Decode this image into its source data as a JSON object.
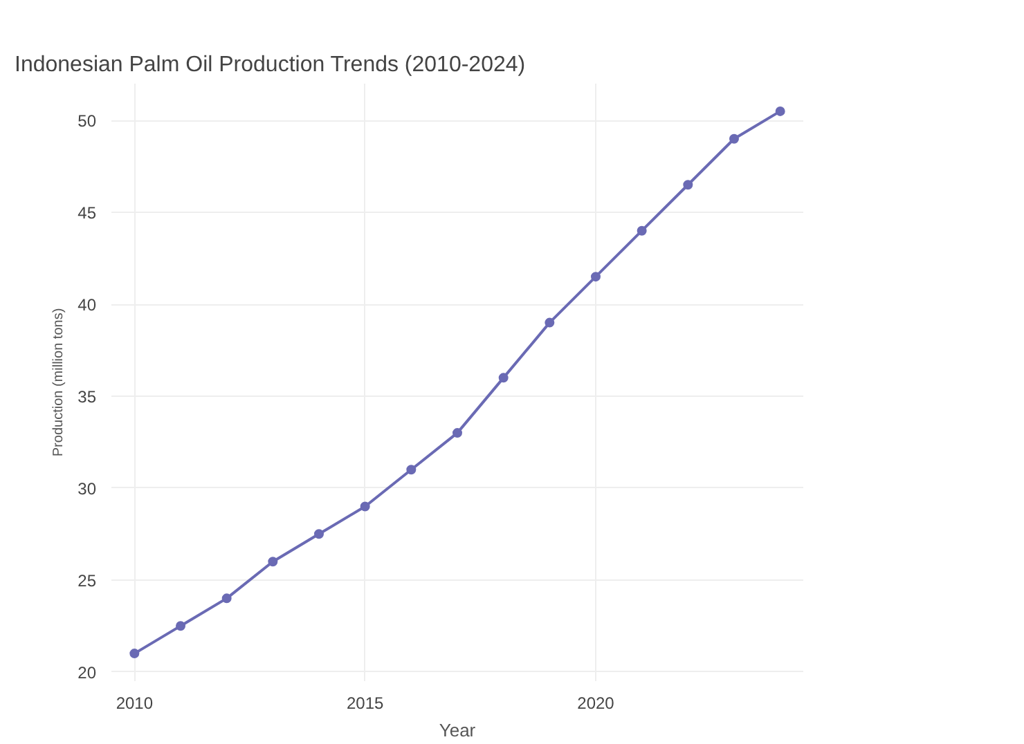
{
  "chart_data": {
    "type": "line",
    "title": "Indonesian Palm Oil Production Trends (2010-2024)",
    "xlabel": "Year",
    "ylabel": "Production (million tons)",
    "x": [
      2010,
      2011,
      2012,
      2013,
      2014,
      2015,
      2016,
      2017,
      2018,
      2019,
      2020,
      2021,
      2022,
      2023,
      2024
    ],
    "series": [
      {
        "color": "#6a6ab4",
        "values": [
          21,
          22.5,
          24,
          26,
          27.5,
          29,
          31,
          33,
          36,
          39,
          41.5,
          44,
          46.5,
          49,
          50.5
        ]
      }
    ],
    "xlim": [
      2009.5,
      2024.5
    ],
    "ylim": [
      19.5,
      52
    ],
    "xticks": [
      2010,
      2015,
      2020
    ],
    "yticks": [
      20,
      25,
      30,
      35,
      40,
      45,
      50
    ],
    "grid": true,
    "marker": "circle",
    "line_style": "solid"
  }
}
